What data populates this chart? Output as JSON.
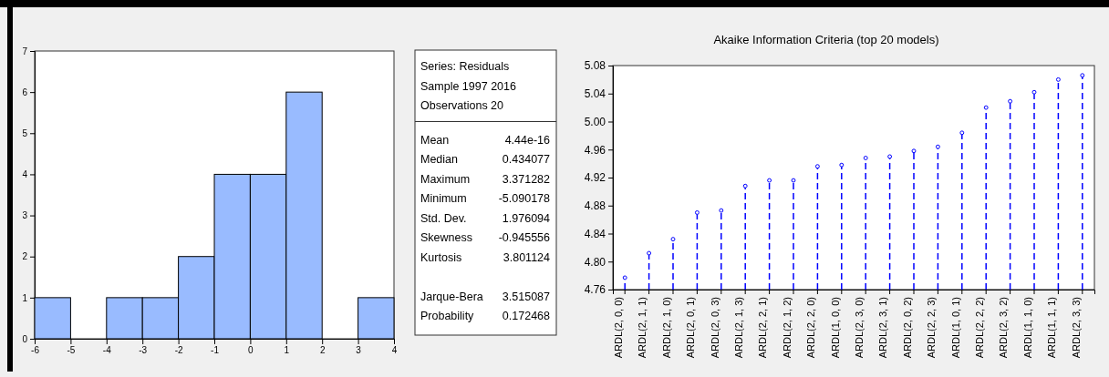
{
  "chart_data": [
    {
      "type": "histogram",
      "bins": [
        -6,
        -5,
        -4,
        -3,
        -2,
        -1,
        0,
        1,
        2,
        3,
        4
      ],
      "values": [
        1,
        0,
        1,
        1,
        2,
        4,
        4,
        6,
        0,
        1
      ],
      "color": "#99bbff",
      "xlim": [
        -6,
        4
      ],
      "xticks": [
        -6,
        -5,
        -4,
        -3,
        -2,
        -1,
        0,
        1,
        2,
        3,
        4
      ],
      "ylim": [
        0,
        7
      ],
      "yticks": [
        0,
        1,
        2,
        3,
        4,
        5,
        6,
        7
      ],
      "grid": false
    },
    {
      "type": "other",
      "annotations": [
        "Series: Residuals",
        "Sample 1997 2016",
        "Observations 20"
      ],
      "categories": [
        "Mean",
        "Median",
        "Maximum",
        "Minimum",
        "Std. Dev.",
        "Skewness",
        "Kurtosis",
        null,
        "Jarque-Bera",
        "Probability"
      ],
      "value_labels": [
        "4.44e-16",
        "0.434077",
        "3.371282",
        "-5.090178",
        "1.976094",
        "-0.945556",
        "3.801124",
        null,
        "3.515087",
        "0.172468"
      ]
    },
    {
      "type": "lollipop",
      "title": "Akaike Information Criteria (top 20 models)",
      "categories": [
        "ARDL(2, 0, 0)",
        "ARDL(2, 1, 1)",
        "ARDL(2, 1, 0)",
        "ARDL(2, 0, 1)",
        "ARDL(2, 0, 3)",
        "ARDL(2, 1, 3)",
        "ARDL(2, 2, 1)",
        "ARDL(2, 1, 2)",
        "ARDL(2, 2, 0)",
        "ARDL(1, 0, 0)",
        "ARDL(2, 3, 0)",
        "ARDL(2, 3, 1)",
        "ARDL(2, 0, 2)",
        "ARDL(2, 2, 3)",
        "ARDL(1, 0, 1)",
        "ARDL(2, 2, 2)",
        "ARDL(2, 3, 2)",
        "ARDL(1, 1, 0)",
        "ARDL(1, 1, 1)",
        "ARDL(2, 3, 3)"
      ],
      "values": [
        4.777,
        4.812,
        4.832,
        4.87,
        4.873,
        4.908,
        4.916,
        4.916,
        4.936,
        4.938,
        4.948,
        4.95,
        4.958,
        4.964,
        4.984,
        5.02,
        5.029,
        5.042,
        5.06,
        5.066
      ],
      "color": "#0000ff",
      "line_style": "dashed",
      "marker": "circle",
      "ylim": [
        4.76,
        5.08
      ],
      "yticks": [
        {
          "value": 4.76,
          "label": "4.76"
        },
        {
          "value": 4.8,
          "label": "4.80"
        },
        {
          "value": 4.84,
          "label": "4.84"
        },
        {
          "value": 4.88,
          "label": "4.88"
        },
        {
          "value": 4.92,
          "label": "4.92"
        },
        {
          "value": 4.96,
          "label": "4.96"
        },
        {
          "value": 5.0,
          "label": "5.00"
        },
        {
          "value": 5.04,
          "label": "5.04"
        },
        {
          "value": 5.08,
          "label": "5.08"
        }
      ],
      "grid": false
    }
  ]
}
